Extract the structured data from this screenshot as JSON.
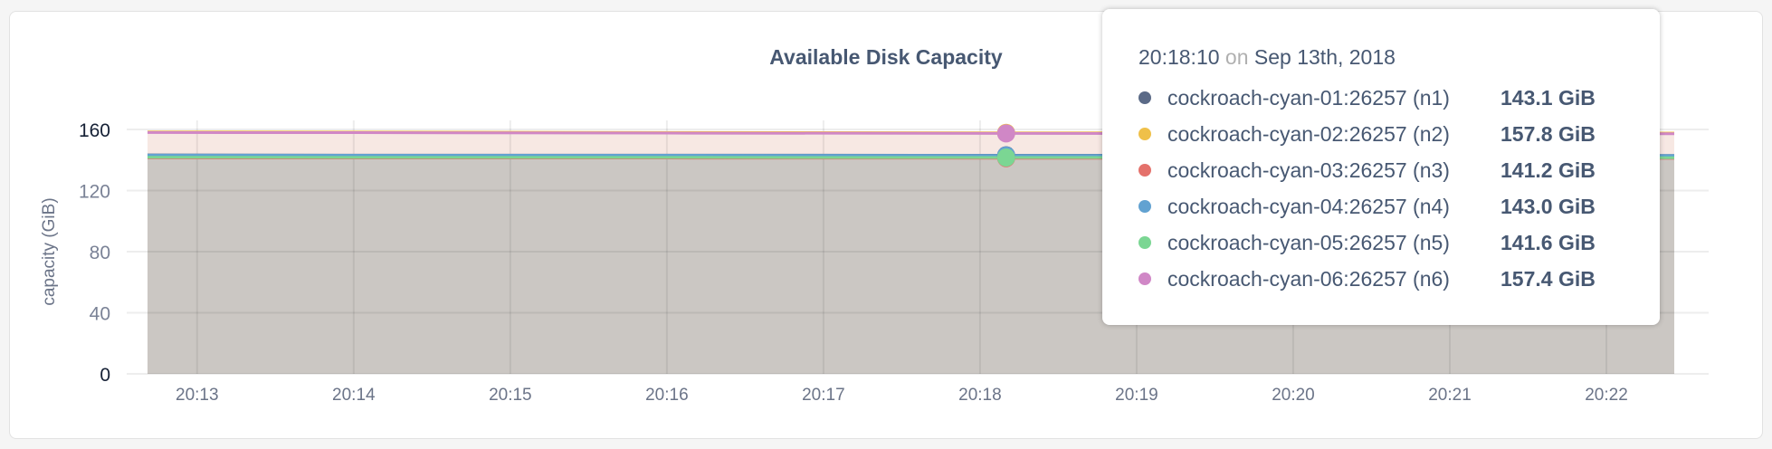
{
  "chart_data": {
    "type": "area",
    "title": "Available Disk Capacity",
    "ylabel": "capacity (GiB)",
    "xlabel": "",
    "ylim": [
      0,
      160
    ],
    "yticks": [
      "0",
      "40",
      "80",
      "120",
      "160"
    ],
    "xticks": [
      "20:13",
      "20:14",
      "20:15",
      "20:16",
      "20:17",
      "20:18",
      "20:19",
      "20:20",
      "20:21",
      "20:22"
    ],
    "xlim": [
      "20:12:41",
      "20:22:26"
    ],
    "grid": true,
    "x": [
      "20:12:41",
      "20:14:00",
      "20:16:00",
      "20:18:10",
      "20:20:00",
      "20:22:26"
    ],
    "series": [
      {
        "name": "cockroach-cyan-01:26257 (n1)",
        "color": "#5b6a87",
        "values": [
          143.3,
          143.2,
          143.2,
          143.1,
          143.1,
          143.0
        ]
      },
      {
        "name": "cockroach-cyan-02:26257 (n2)",
        "color": "#efc049",
        "values": [
          158.4,
          158.3,
          158.0,
          157.8,
          157.7,
          157.6
        ]
      },
      {
        "name": "cockroach-cyan-03:26257 (n3)",
        "color": "#e4716b",
        "values": [
          141.4,
          141.3,
          141.3,
          141.2,
          141.2,
          141.1
        ]
      },
      {
        "name": "cockroach-cyan-04:26257 (n4)",
        "color": "#62a2d1",
        "values": [
          143.2,
          143.1,
          143.1,
          143.0,
          143.0,
          142.9
        ]
      },
      {
        "name": "cockroach-cyan-05:26257 (n5)",
        "color": "#7bd693",
        "values": [
          141.8,
          141.7,
          141.7,
          141.6,
          141.6,
          141.5
        ]
      },
      {
        "name": "cockroach-cyan-06:26257 (n6)",
        "color": "#d087c6",
        "values": [
          158.0,
          157.9,
          157.6,
          157.4,
          157.3,
          157.2
        ]
      }
    ],
    "hover": {
      "x": "20:18:10",
      "time": "20:18:10",
      "on": "on",
      "date": "Sep 13th, 2018",
      "rows": [
        {
          "name": "cockroach-cyan-01:26257 (n1)",
          "value": "143.1 GiB"
        },
        {
          "name": "cockroach-cyan-02:26257 (n2)",
          "value": "157.8 GiB"
        },
        {
          "name": "cockroach-cyan-03:26257 (n3)",
          "value": "141.2 GiB"
        },
        {
          "name": "cockroach-cyan-04:26257 (n4)",
          "value": "143.0 GiB"
        },
        {
          "name": "cockroach-cyan-05:26257 (n5)",
          "value": "141.6 GiB"
        },
        {
          "name": "cockroach-cyan-06:26257 (n6)",
          "value": "157.4 GiB"
        }
      ]
    }
  }
}
